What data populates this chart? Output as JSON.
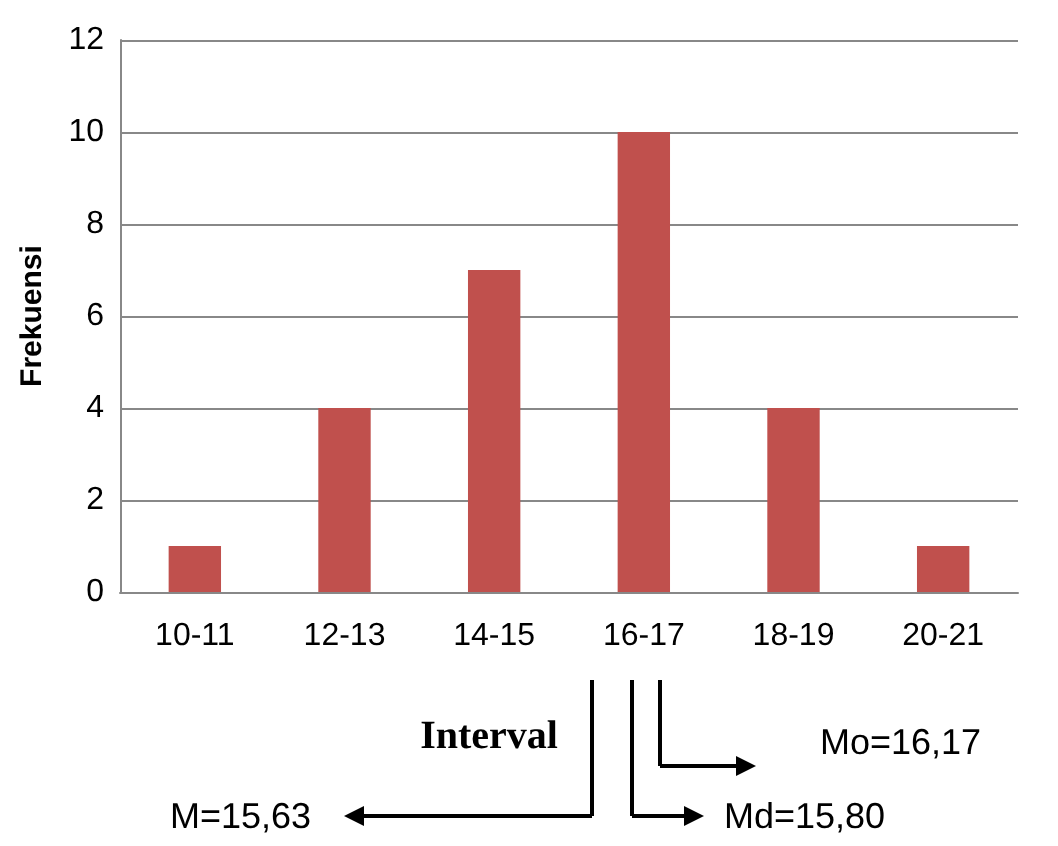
{
  "chart_data": {
    "type": "bar",
    "xlabel": "Interval",
    "ylabel": "Frekuensi",
    "categories": [
      "10-11",
      "12-13",
      "14-15",
      "16-17",
      "18-19",
      "20-21"
    ],
    "values": [
      1,
      4,
      7,
      10,
      4,
      1
    ],
    "color": "#c0504d",
    "ylim": [
      0,
      12
    ],
    "yticks": [
      0,
      2,
      4,
      6,
      8,
      10,
      12
    ],
    "grid": "y",
    "annotations": [
      "M=15,63",
      "Md=15,80",
      "Mo=16,17"
    ]
  }
}
